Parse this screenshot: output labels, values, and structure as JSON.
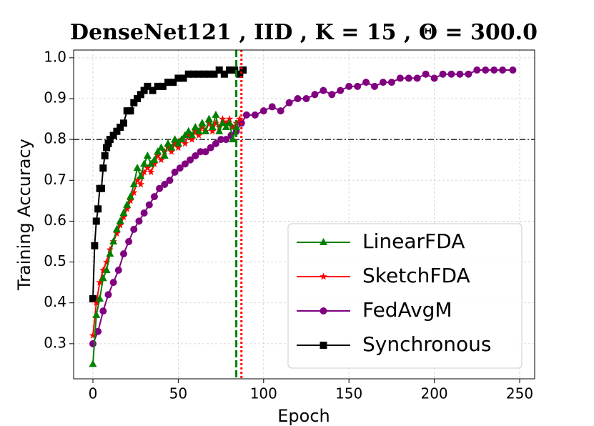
{
  "chart_data": {
    "type": "line",
    "title": "DenseNet121 , IID , K = 15 , Θ = 300.0",
    "x_label": "Epoch",
    "y_label": "Training Accuracy",
    "xlim": [
      -11.3,
      258.8
    ],
    "ylim": [
      0.214,
      1.019
    ],
    "xticks": [
      0,
      50,
      100,
      150,
      200,
      250
    ],
    "yticks": [
      0.3,
      0.4,
      0.5,
      0.6,
      0.7,
      0.8,
      0.9,
      {
        "value": 1,
        "label": "1.0"
      }
    ],
    "grid": true,
    "legend": "lower right",
    "hline": {
      "y": 0.8,
      "color": "#000000",
      "style": "dashdot"
    },
    "vlines": [
      {
        "x": 84,
        "color": "#008000",
        "style": "dashed"
      },
      {
        "x": 87,
        "color": "#ff0000",
        "style": "dotted"
      }
    ],
    "series": [
      {
        "name": "LinearFDA",
        "color": "#008000",
        "marker": "triangle",
        "x": [
          0,
          2,
          4,
          6,
          8,
          10,
          12,
          14,
          16,
          18,
          20,
          22,
          24,
          26,
          28,
          30,
          32,
          34,
          36,
          38,
          40,
          42,
          44,
          46,
          48,
          50,
          52,
          54,
          56,
          58,
          60,
          62,
          64,
          66,
          68,
          70,
          72,
          74,
          76,
          78,
          80,
          82,
          84
        ],
        "values": [
          0.25,
          0.37,
          0.41,
          0.46,
          0.48,
          0.52,
          0.55,
          0.58,
          0.6,
          0.62,
          0.64,
          0.66,
          0.69,
          0.73,
          0.71,
          0.74,
          0.76,
          0.74,
          0.75,
          0.77,
          0.78,
          0.76,
          0.79,
          0.78,
          0.8,
          0.79,
          0.8,
          0.81,
          0.82,
          0.81,
          0.83,
          0.82,
          0.84,
          0.82,
          0.85,
          0.83,
          0.86,
          0.82,
          0.84,
          0.83,
          0.84,
          0.8,
          0.83
        ]
      },
      {
        "name": "SketchFDA",
        "color": "#ff0000",
        "marker": "star",
        "x": [
          0,
          2,
          4,
          6,
          8,
          10,
          12,
          14,
          16,
          18,
          20,
          22,
          24,
          26,
          28,
          30,
          32,
          34,
          36,
          38,
          40,
          42,
          44,
          46,
          48,
          50,
          52,
          54,
          56,
          58,
          60,
          62,
          64,
          66,
          68,
          70,
          72,
          74,
          76,
          78,
          80,
          82,
          84,
          86
        ],
        "values": [
          0.32,
          0.4,
          0.45,
          0.48,
          0.5,
          0.53,
          0.55,
          0.57,
          0.59,
          0.61,
          0.63,
          0.65,
          0.67,
          0.7,
          0.69,
          0.72,
          0.73,
          0.72,
          0.74,
          0.76,
          0.75,
          0.77,
          0.78,
          0.77,
          0.79,
          0.78,
          0.8,
          0.79,
          0.81,
          0.8,
          0.82,
          0.81,
          0.83,
          0.82,
          0.84,
          0.82,
          0.84,
          0.83,
          0.85,
          0.84,
          0.85,
          0.83,
          0.84,
          0.85
        ]
      },
      {
        "name": "FedAvgM",
        "color": "#800080",
        "marker": "circle",
        "x": [
          0,
          3,
          6,
          9,
          12,
          15,
          18,
          21,
          24,
          27,
          30,
          33,
          36,
          39,
          42,
          45,
          48,
          51,
          54,
          57,
          60,
          63,
          66,
          69,
          72,
          75,
          78,
          81,
          84,
          87,
          90,
          95,
          100,
          105,
          110,
          115,
          120,
          125,
          130,
          135,
          140,
          145,
          150,
          155,
          160,
          165,
          170,
          175,
          180,
          185,
          190,
          195,
          200,
          205,
          210,
          215,
          220,
          225,
          230,
          235,
          240,
          246
        ],
        "values": [
          0.3,
          0.33,
          0.38,
          0.42,
          0.45,
          0.48,
          0.52,
          0.55,
          0.58,
          0.6,
          0.62,
          0.64,
          0.66,
          0.68,
          0.69,
          0.7,
          0.72,
          0.73,
          0.74,
          0.75,
          0.76,
          0.77,
          0.77,
          0.78,
          0.79,
          0.8,
          0.8,
          0.81,
          0.82,
          0.84,
          0.86,
          0.86,
          0.87,
          0.88,
          0.87,
          0.89,
          0.9,
          0.9,
          0.91,
          0.92,
          0.91,
          0.92,
          0.93,
          0.93,
          0.94,
          0.93,
          0.94,
          0.94,
          0.95,
          0.95,
          0.95,
          0.96,
          0.95,
          0.96,
          0.96,
          0.96,
          0.96,
          0.97,
          0.97,
          0.97,
          0.97,
          0.97
        ]
      },
      {
        "name": "Synchronous",
        "color": "#000000",
        "marker": "square",
        "x": [
          0,
          1,
          2,
          3,
          4,
          5,
          6,
          7,
          8,
          9,
          10,
          12,
          14,
          16,
          18,
          20,
          22,
          24,
          26,
          28,
          30,
          32,
          35,
          38,
          41,
          44,
          47,
          50,
          53,
          56,
          59,
          62,
          65,
          68,
          71,
          74,
          77,
          80,
          83,
          86,
          88
        ],
        "values": [
          0.41,
          0.54,
          0.6,
          0.63,
          0.68,
          0.68,
          0.73,
          0.76,
          0.78,
          0.79,
          0.8,
          0.81,
          0.82,
          0.83,
          0.84,
          0.87,
          0.87,
          0.89,
          0.9,
          0.91,
          0.92,
          0.93,
          0.92,
          0.93,
          0.93,
          0.94,
          0.94,
          0.95,
          0.95,
          0.96,
          0.96,
          0.96,
          0.96,
          0.96,
          0.96,
          0.97,
          0.96,
          0.97,
          0.97,
          0.96,
          0.97
        ]
      }
    ]
  }
}
